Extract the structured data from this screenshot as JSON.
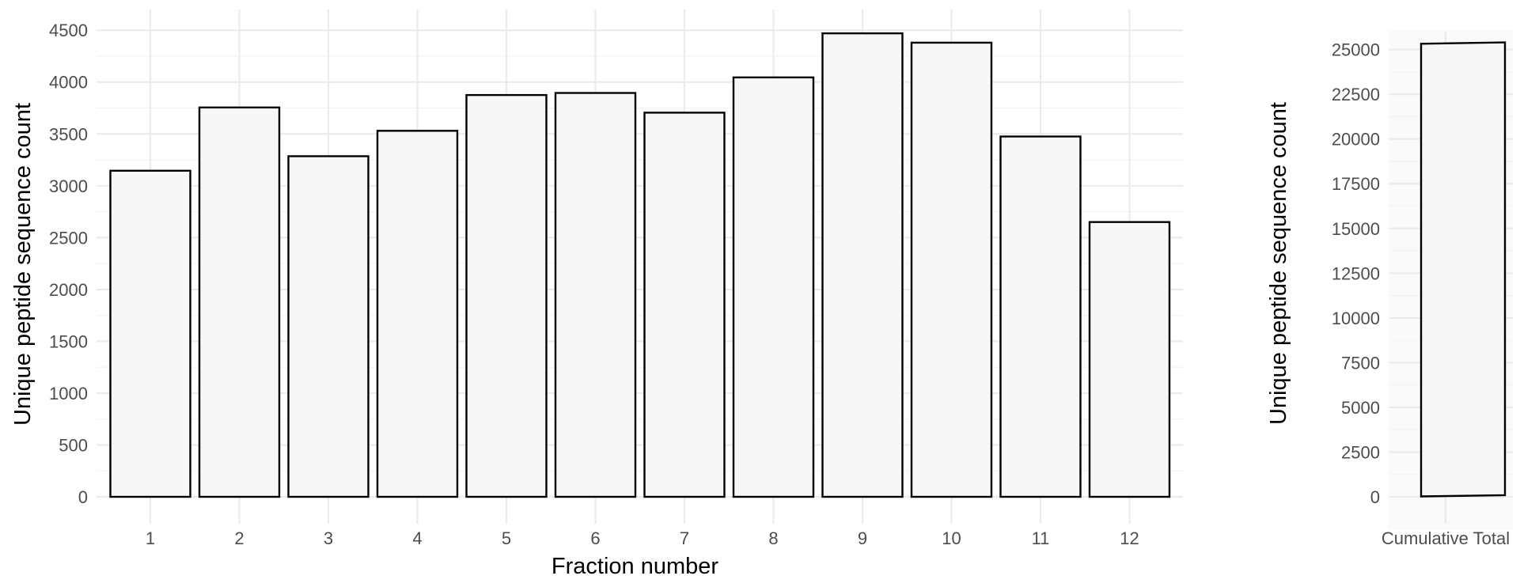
{
  "chart_data": [
    {
      "type": "bar",
      "title": "",
      "xlabel": "Fraction number",
      "ylabel": "Unique peptide sequence count",
      "categories": [
        "1",
        "2",
        "3",
        "4",
        "5",
        "6",
        "7",
        "8",
        "9",
        "10",
        "11",
        "12"
      ],
      "values": [
        3145,
        3755,
        3285,
        3530,
        3875,
        3895,
        3705,
        4045,
        4470,
        4380,
        3475,
        2650
      ],
      "ylim": [
        0,
        4700
      ],
      "yticks": [
        "0",
        "500",
        "1000",
        "1500",
        "2000",
        "2500",
        "3000",
        "3500",
        "4000",
        "4500"
      ],
      "grid": true,
      "colors": {
        "bar_fill": "#f7f7f7",
        "bar_stroke": "#000000",
        "grid": "#ebebeb"
      }
    },
    {
      "type": "bar",
      "title": "",
      "xlabel": "",
      "ylabel": "Unique peptide sequence count",
      "categories": [
        "Cumulative Total"
      ],
      "values": [
        25400
      ],
      "ylim": [
        0,
        26000
      ],
      "yticks": [
        "0",
        "2500",
        "5000",
        "7500",
        "10000",
        "12500",
        "15000",
        "17500",
        "20000",
        "22500",
        "25000"
      ],
      "grid": true,
      "colors": {
        "bar_fill": "#f7f7f7",
        "bar_stroke": "#000000",
        "grid": "#ebebeb",
        "panel": "#fafafa"
      }
    }
  ]
}
